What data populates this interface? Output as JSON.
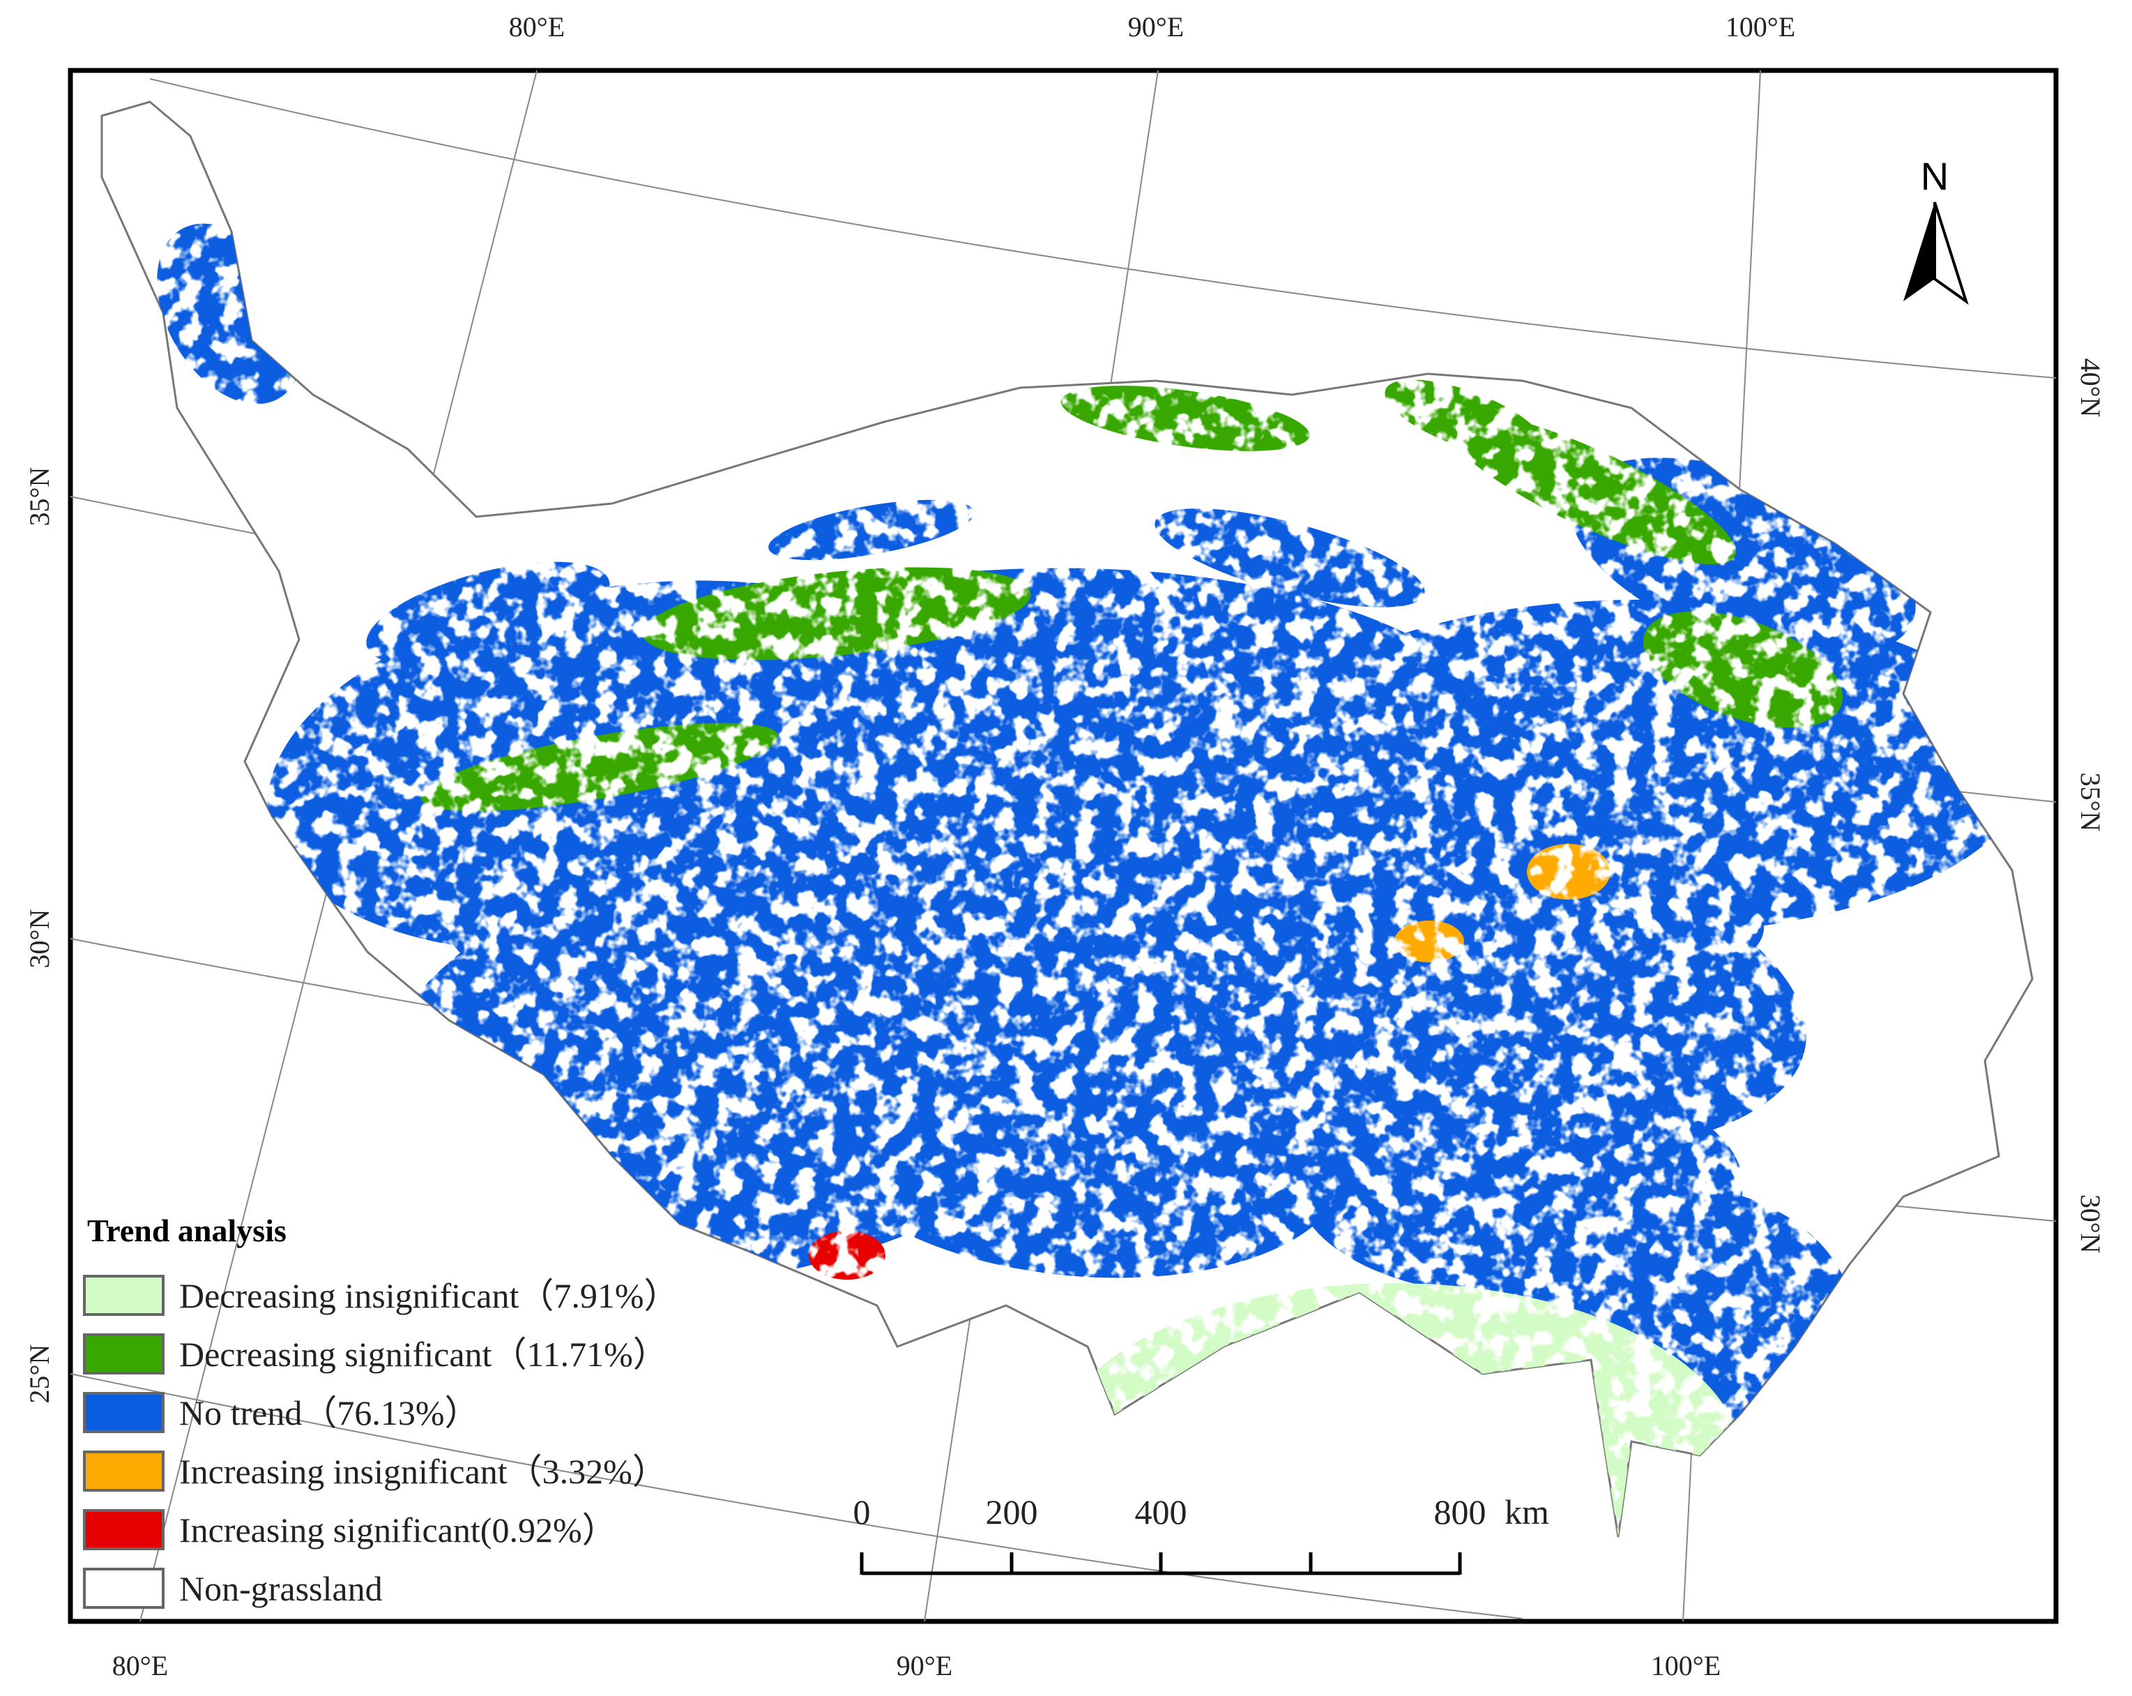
{
  "map": {
    "graticule": {
      "top": [
        "80°E",
        "90°E",
        "100°E"
      ],
      "bottom": [
        "80°E",
        "90°E",
        "100°E"
      ],
      "left": [
        "35°N",
        "30°N",
        "25°N"
      ],
      "right": [
        "40°N",
        "35°N",
        "30°N"
      ]
    },
    "north": "N",
    "legend": {
      "title": "Trend analysis",
      "items": [
        {
          "label": "Decreasing insignificant（7.91%）",
          "color": "#d3fbc5"
        },
        {
          "label": "Decreasing significant（11.71%）",
          "color": "#38a800"
        },
        {
          "label": "No trend（76.13%）",
          "color": "#0a5de0"
        },
        {
          "label": "Increasing insignificant（3.32%）",
          "color": "#ffaa00"
        },
        {
          "label": "Increasing significant(0.92%）",
          "color": "#e60000"
        },
        {
          "label": "Non-grassland",
          "color": "#ffffff"
        }
      ]
    },
    "scale_bar": {
      "labels": [
        "0",
        "200",
        "400",
        "800"
      ],
      "unit": "km"
    }
  }
}
